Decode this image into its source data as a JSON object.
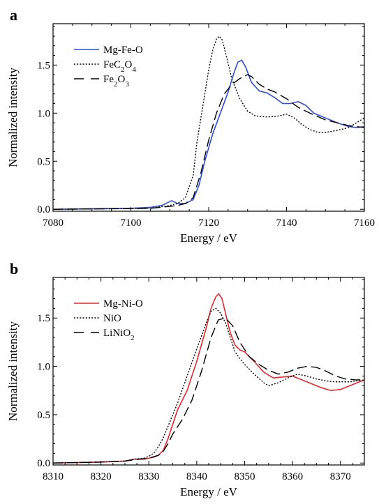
{
  "chart_data": [
    {
      "panel_label": "a",
      "type": "line",
      "xlabel": "Energy / eV",
      "ylabel": "Normalized intensity",
      "xlim": [
        7080,
        7160
      ],
      "ylim": [
        -0.02,
        1.93
      ],
      "xticks": [
        "7080",
        "7100",
        "7120",
        "7140",
        "7160"
      ],
      "yticks": [
        "0.0",
        "0.5",
        "1.0",
        "1.5"
      ],
      "legend_position": "top-left",
      "series": [
        {
          "name": "Mg-Fe-O",
          "color": "#2a4fd6",
          "dash": "solid",
          "x": [
            7080,
            7100,
            7105,
            7108,
            7109.5,
            7110.5,
            7112,
            7114,
            7116,
            7117.5,
            7119,
            7121,
            7123,
            7125,
            7126.5,
            7127.5,
            7128.5,
            7129.5,
            7131,
            7133,
            7135,
            7137,
            7139,
            7141,
            7143,
            7145,
            7147,
            7150,
            7153,
            7156,
            7158,
            7160
          ],
          "y": [
            0.0,
            0.01,
            0.02,
            0.04,
            0.07,
            0.09,
            0.06,
            0.06,
            0.1,
            0.25,
            0.5,
            0.78,
            1.0,
            1.22,
            1.42,
            1.53,
            1.55,
            1.48,
            1.32,
            1.23,
            1.21,
            1.16,
            1.1,
            1.1,
            1.12,
            1.08,
            1.0,
            0.95,
            0.9,
            0.86,
            0.85,
            0.86
          ]
        },
        {
          "name": "FeC₂O₄",
          "color": "#000000",
          "dash": "dotted",
          "x": [
            7080,
            7105,
            7110,
            7112,
            7114,
            7116,
            7117,
            7118,
            7119,
            7120,
            7121,
            7122,
            7122.7,
            7123.5,
            7124.5,
            7126,
            7128,
            7130,
            7132,
            7135,
            7138,
            7140,
            7142,
            7144,
            7146,
            7148,
            7150,
            7153,
            7156,
            7158,
            7160
          ],
          "y": [
            0.0,
            0.01,
            0.04,
            0.06,
            0.12,
            0.35,
            0.7,
            0.95,
            1.2,
            1.45,
            1.65,
            1.77,
            1.8,
            1.76,
            1.6,
            1.35,
            1.15,
            1.02,
            0.97,
            0.96,
            0.97,
            0.99,
            0.95,
            0.88,
            0.83,
            0.8,
            0.8,
            0.82,
            0.85,
            0.9,
            0.95
          ]
        },
        {
          "name": "Fe₂O₃",
          "color": "#000000",
          "dash": "dashed",
          "x": [
            7080,
            7105,
            7110,
            7112,
            7114,
            7116,
            7118,
            7120,
            7122,
            7124,
            7126,
            7128,
            7130,
            7131,
            7133,
            7135,
            7137,
            7140,
            7143,
            7146,
            7150,
            7153,
            7156,
            7160
          ],
          "y": [
            0.0,
            0.01,
            0.03,
            0.04,
            0.06,
            0.12,
            0.38,
            0.72,
            1.0,
            1.2,
            1.3,
            1.36,
            1.4,
            1.38,
            1.3,
            1.25,
            1.22,
            1.15,
            1.06,
            1.0,
            0.93,
            0.9,
            0.87,
            0.85
          ]
        }
      ]
    },
    {
      "panel_label": "b",
      "type": "line",
      "xlabel": "Energy / eV",
      "ylabel": "Normalized intensity",
      "xlim": [
        8310,
        8375
      ],
      "ylim": [
        -0.02,
        1.92
      ],
      "xticks": [
        "8310",
        "8320",
        "8330",
        "8340",
        "8350",
        "8360",
        "8370"
      ],
      "yticks": [
        "0.0",
        "0.5",
        "1.0",
        "1.5"
      ],
      "legend_position": "top-left",
      "series": [
        {
          "name": "Mg-Ni-O",
          "color": "#e8262a",
          "dash": "solid",
          "x": [
            8310,
            8320,
            8325,
            8327,
            8329,
            8331,
            8332,
            8333,
            8334,
            8335,
            8336,
            8338,
            8340,
            8342,
            8343,
            8344,
            8344.6,
            8345.3,
            8346,
            8347,
            8348,
            8349,
            8350,
            8352,
            8354,
            8356,
            8358,
            8360,
            8362,
            8364,
            8366,
            8368,
            8370,
            8372,
            8375
          ],
          "y": [
            0.0,
            0.01,
            0.02,
            0.04,
            0.04,
            0.06,
            0.08,
            0.13,
            0.25,
            0.4,
            0.55,
            0.75,
            1.05,
            1.4,
            1.6,
            1.72,
            1.75,
            1.7,
            1.55,
            1.35,
            1.22,
            1.17,
            1.15,
            1.05,
            0.94,
            0.88,
            0.89,
            0.9,
            0.86,
            0.82,
            0.78,
            0.75,
            0.76,
            0.8,
            0.86
          ]
        },
        {
          "name": "NiO",
          "color": "#000000",
          "dash": "dotted",
          "x": [
            8310,
            8320,
            8325,
            8327,
            8329,
            8330,
            8331,
            8332,
            8333,
            8334,
            8335,
            8336,
            8338,
            8340,
            8342,
            8343,
            8344,
            8345,
            8346,
            8347,
            8348,
            8349,
            8350,
            8352,
            8354,
            8355,
            8357,
            8359,
            8361,
            8363,
            8365,
            8367,
            8369,
            8372,
            8375
          ],
          "y": [
            0.0,
            0.01,
            0.02,
            0.04,
            0.05,
            0.07,
            0.1,
            0.17,
            0.26,
            0.38,
            0.5,
            0.62,
            0.9,
            1.18,
            1.45,
            1.57,
            1.6,
            1.55,
            1.45,
            1.3,
            1.15,
            1.08,
            1.02,
            0.92,
            0.83,
            0.8,
            0.83,
            0.88,
            0.92,
            0.9,
            0.87,
            0.85,
            0.84,
            0.84,
            0.86
          ]
        },
        {
          "name": "LiNiO₂",
          "color": "#000000",
          "dash": "dashed",
          "x": [
            8310,
            8320,
            8325,
            8328,
            8330,
            8332,
            8333,
            8334,
            8335,
            8337,
            8339,
            8341,
            8343,
            8344.5,
            8346,
            8347.5,
            8349,
            8351,
            8353,
            8355,
            8357,
            8359,
            8361,
            8363,
            8365,
            8367,
            8369,
            8371,
            8373,
            8375
          ],
          "y": [
            0.0,
            0.01,
            0.02,
            0.04,
            0.05,
            0.08,
            0.12,
            0.2,
            0.3,
            0.45,
            0.65,
            0.95,
            1.3,
            1.48,
            1.5,
            1.42,
            1.25,
            1.1,
            1.02,
            0.96,
            0.92,
            0.94,
            0.98,
            1.0,
            0.99,
            0.95,
            0.9,
            0.87,
            0.86,
            0.86
          ]
        }
      ]
    }
  ]
}
